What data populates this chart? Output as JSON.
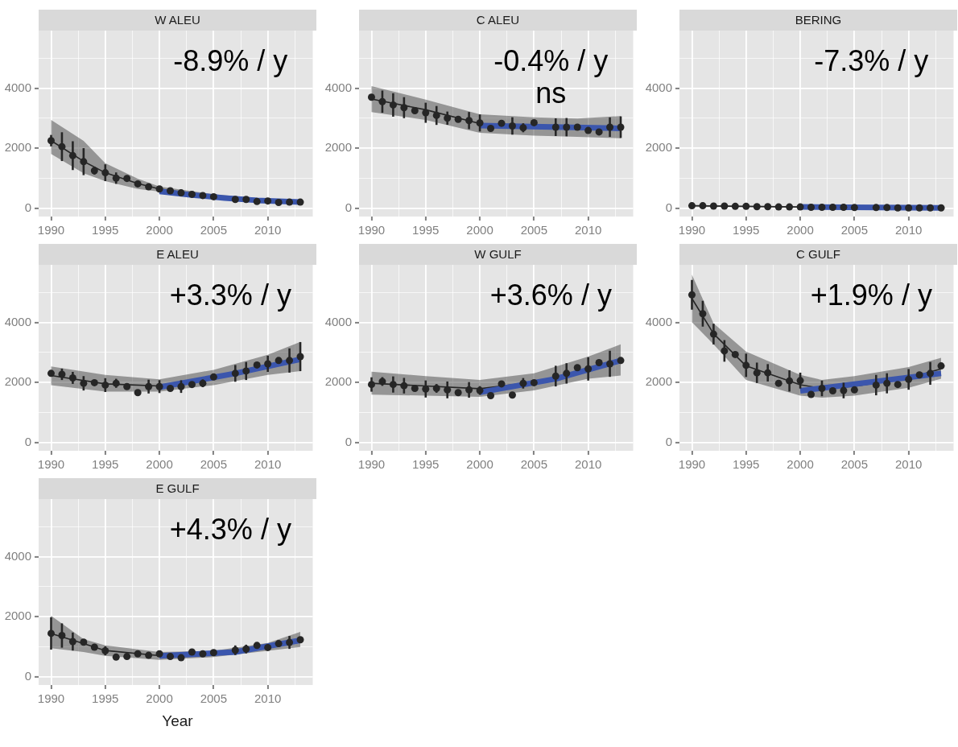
{
  "chart_data": [
    {
      "type": "line",
      "title": "W ALEU",
      "annotations": [
        "-8.9% / y"
      ],
      "xlim": [
        1988.85,
        2014.15
      ],
      "ylim": [
        -280,
        5920
      ],
      "xticks": [
        1990,
        {
          "value": 1992.5,
          "label": null
        },
        1995,
        {
          "value": 1997.5,
          "label": null
        },
        2000,
        {
          "value": 2002.5,
          "label": null
        },
        2005,
        {
          "value": 2007.5,
          "label": null
        },
        2010,
        {
          "value": 2012.5,
          "label": null
        }
      ],
      "yticks": [
        0,
        {
          "value": 1000,
          "label": null
        },
        2000,
        {
          "value": 3000,
          "label": null
        },
        4000,
        {
          "value": 5000,
          "label": null
        }
      ],
      "grid": true,
      "series": [
        {
          "type": "line",
          "color": "#262626",
          "marker": "none",
          "x": [
            1990,
            1993,
            1995,
            1998,
            2000,
            2005,
            2010,
            2013
          ],
          "values": [
            2250,
            1560,
            1180,
            820,
            640,
            380,
            240,
            190
          ],
          "lower": [
            1810,
            1160,
            900,
            640,
            550,
            300,
            170,
            130
          ],
          "upper": [
            2940,
            2240,
            1500,
            980,
            720,
            460,
            310,
            250
          ]
        },
        {
          "type": "line",
          "color": "#3b56ad",
          "marker": "none",
          "x": [
            2000,
            2003,
            2006,
            2009,
            2013
          ],
          "values": [
            560,
            440,
            340,
            260,
            200
          ]
        },
        {
          "type": "scatter",
          "color": "#262626",
          "marker": "circle",
          "x": [
            1990,
            1991,
            1992,
            1993,
            1994,
            1995,
            1996,
            1997,
            1998,
            1999,
            2000,
            2001,
            2002,
            2003,
            2004,
            2005,
            2007,
            2008,
            2009,
            2010,
            2011,
            2012,
            2013
          ],
          "values": [
            2250,
            2050,
            1750,
            1550,
            1250,
            1180,
            1000,
            990,
            810,
            710,
            640,
            580,
            510,
            460,
            420,
            380,
            290,
            290,
            220,
            240,
            190,
            200,
            200
          ],
          "errors": [
            190,
            480,
            480,
            450,
            130,
            280,
            190,
            null,
            null,
            null,
            null,
            null,
            null,
            null,
            null,
            null,
            null,
            null,
            null,
            null,
            null,
            null,
            null
          ]
        }
      ]
    },
    {
      "type": "line",
      "title": "C ALEU",
      "annotations": [
        "-0.4% / y",
        "ns"
      ],
      "xlim": [
        1988.85,
        2014.15
      ],
      "ylim": [
        -280,
        5920
      ],
      "xticks": [
        1990,
        {
          "value": 1992.5,
          "label": null
        },
        1995,
        {
          "value": 1997.5,
          "label": null
        },
        2000,
        {
          "value": 2002.5,
          "label": null
        },
        2005,
        {
          "value": 2007.5,
          "label": null
        },
        2010,
        {
          "value": 2012.5,
          "label": null
        }
      ],
      "yticks": [
        0,
        {
          "value": 1000,
          "label": null
        },
        2000,
        {
          "value": 3000,
          "label": null
        },
        4000,
        {
          "value": 5000,
          "label": null
        }
      ],
      "grid": true,
      "series": [
        {
          "type": "line",
          "color": "#262626",
          "marker": "none",
          "x": [
            1990,
            1995,
            2000,
            2005,
            2009,
            2013
          ],
          "values": [
            3640,
            3280,
            2820,
            2720,
            2680,
            2700
          ],
          "lower": [
            3200,
            2940,
            2510,
            2420,
            2380,
            2330
          ],
          "upper": [
            4070,
            3620,
            3130,
            3030,
            2990,
            3070
          ]
        },
        {
          "type": "line",
          "color": "#3b56ad",
          "marker": "none",
          "x": [
            2000,
            2013
          ],
          "values": [
            2750,
            2660
          ]
        },
        {
          "type": "scatter",
          "color": "#262626",
          "marker": "circle",
          "x": [
            1990,
            1991,
            1992,
            1993,
            1994,
            1995,
            1996,
            1997,
            1998,
            1999,
            2000,
            2001,
            2002,
            2003,
            2004,
            2005,
            2007,
            2008,
            2009,
            2010,
            2011,
            2012,
            2013
          ],
          "values": [
            3700,
            3550,
            3440,
            3350,
            3250,
            3180,
            3090,
            3000,
            2960,
            2920,
            2840,
            2660,
            2830,
            2740,
            2680,
            2850,
            2700,
            2700,
            2700,
            2590,
            2540,
            2700,
            2700
          ],
          "errors": [
            null,
            370,
            390,
            350,
            null,
            335,
            315,
            220,
            null,
            285,
            285,
            null,
            null,
            290,
            150,
            null,
            295,
            305,
            null,
            null,
            null,
            325,
            360
          ]
        }
      ]
    },
    {
      "type": "line",
      "title": "BERING",
      "annotations": [
        "-7.3% / y"
      ],
      "xlim": [
        1988.85,
        2014.15
      ],
      "ylim": [
        -280,
        5920
      ],
      "xticks": [
        1990,
        {
          "value": 1992.5,
          "label": null
        },
        1995,
        {
          "value": 1997.5,
          "label": null
        },
        2000,
        {
          "value": 2002.5,
          "label": null
        },
        2005,
        {
          "value": 2007.5,
          "label": null
        },
        2010,
        {
          "value": 2012.5,
          "label": null
        }
      ],
      "yticks": [
        0,
        {
          "value": 1000,
          "label": null
        },
        2000,
        {
          "value": 3000,
          "label": null
        },
        4000,
        {
          "value": 5000,
          "label": null
        }
      ],
      "grid": true,
      "series": [
        {
          "type": "line",
          "color": "#262626",
          "marker": "none",
          "x": [
            1990,
            1995,
            2000,
            2005,
            2013
          ],
          "values": [
            80,
            60,
            40,
            20,
            10
          ],
          "lower": [
            60,
            40,
            20,
            10,
            0
          ],
          "upper": [
            100,
            70,
            50,
            30,
            20
          ]
        },
        {
          "type": "line",
          "color": "#3b56ad",
          "marker": "none",
          "x": [
            2000,
            2013
          ],
          "values": [
            40,
            10
          ]
        },
        {
          "type": "scatter",
          "color": "#262626",
          "marker": "circle",
          "x": [
            1990,
            1991,
            1992,
            1993,
            1994,
            1995,
            1996,
            1997,
            1998,
            1999,
            2000,
            2001,
            2002,
            2003,
            2004,
            2005,
            2007,
            2008,
            2009,
            2010,
            2011,
            2012,
            2013
          ],
          "values": [
            80,
            80,
            70,
            70,
            60,
            60,
            50,
            50,
            40,
            40,
            40,
            30,
            30,
            30,
            30,
            20,
            20,
            20,
            10,
            10,
            10,
            10,
            10
          ]
        }
      ]
    },
    {
      "type": "line",
      "title": "E ALEU",
      "annotations": [
        "+3.3% / y"
      ],
      "xlim": [
        1988.85,
        2014.15
      ],
      "ylim": [
        -280,
        5920
      ],
      "xticks": [
        1990,
        {
          "value": 1992.5,
          "label": null
        },
        1995,
        {
          "value": 1997.5,
          "label": null
        },
        2000,
        {
          "value": 2002.5,
          "label": null
        },
        2005,
        {
          "value": 2007.5,
          "label": null
        },
        2010,
        {
          "value": 2012.5,
          "label": null
        }
      ],
      "yticks": [
        0,
        {
          "value": 1000,
          "label": null
        },
        2000,
        {
          "value": 3000,
          "label": null
        },
        4000,
        {
          "value": 5000,
          "label": null
        }
      ],
      "grid": true,
      "series": [
        {
          "type": "line",
          "color": "#262626",
          "marker": "none",
          "x": [
            1990,
            1995,
            2000,
            2005,
            2010,
            2013
          ],
          "values": [
            2230,
            1950,
            1880,
            2150,
            2560,
            2830
          ],
          "lower": [
            1910,
            1690,
            1690,
            1910,
            2250,
            2380
          ],
          "upper": [
            2530,
            2250,
            2100,
            2420,
            2920,
            3350
          ]
        },
        {
          "type": "line",
          "color": "#3b56ad",
          "marker": "none",
          "x": [
            2000,
            2007,
            2013
          ],
          "values": [
            1840,
            2300,
            2770
          ]
        },
        {
          "type": "scatter",
          "color": "#262626",
          "marker": "circle",
          "x": [
            1990,
            1991,
            1992,
            1993,
            1994,
            1995,
            1996,
            1997,
            1998,
            1999,
            2000,
            2001,
            2002,
            2003,
            2004,
            2005,
            2007,
            2008,
            2009,
            2010,
            2011,
            2012,
            2013
          ],
          "values": [
            2300,
            2270,
            2150,
            1970,
            1990,
            1910,
            1970,
            1860,
            1660,
            1860,
            1860,
            1800,
            1860,
            1930,
            1970,
            2180,
            2300,
            2380,
            2580,
            2620,
            2730,
            2730,
            2860
          ],
          "errors": [
            null,
            190,
            200,
            240,
            null,
            230,
            150,
            null,
            null,
            230,
            215,
            null,
            210,
            null,
            130,
            null,
            280,
            300,
            null,
            270,
            null,
            405,
            485
          ]
        }
      ]
    },
    {
      "type": "line",
      "title": "W GULF",
      "annotations": [
        "+3.6% / y"
      ],
      "xlim": [
        1988.85,
        2014.15
      ],
      "ylim": [
        -280,
        5920
      ],
      "xticks": [
        1990,
        {
          "value": 1992.5,
          "label": null
        },
        1995,
        {
          "value": 1997.5,
          "label": null
        },
        2000,
        {
          "value": 2002.5,
          "label": null
        },
        2005,
        {
          "value": 2007.5,
          "label": null
        },
        2010,
        {
          "value": 2012.5,
          "label": null
        }
      ],
      "yticks": [
        0,
        {
          "value": 1000,
          "label": null
        },
        2000,
        {
          "value": 3000,
          "label": null
        },
        4000,
        {
          "value": 5000,
          "label": null
        }
      ],
      "grid": true,
      "series": [
        {
          "type": "line",
          "color": "#262626",
          "marker": "none",
          "x": [
            1990,
            1995,
            2000,
            2005,
            2010,
            2013
          ],
          "values": [
            1970,
            1880,
            1790,
            2010,
            2460,
            2750
          ],
          "lower": [
            1590,
            1560,
            1520,
            1730,
            2120,
            2230
          ],
          "upper": [
            2360,
            2210,
            2080,
            2300,
            2860,
            3270
          ]
        },
        {
          "type": "line",
          "color": "#3b56ad",
          "marker": "none",
          "x": [
            2000,
            2007,
            2013
          ],
          "values": [
            1670,
            2120,
            2730
          ]
        },
        {
          "type": "scatter",
          "color": "#262626",
          "marker": "circle",
          "x": [
            1990,
            1991,
            1992,
            1993,
            1994,
            1995,
            1996,
            1997,
            1998,
            1999,
            2000,
            2001,
            2002,
            2003,
            2004,
            2005,
            2007,
            2008,
            2009,
            2010,
            2011,
            2012,
            2013
          ],
          "values": [
            1930,
            2030,
            1930,
            1890,
            1800,
            1780,
            1800,
            1750,
            1660,
            1750,
            1730,
            1560,
            1950,
            1580,
            1970,
            1990,
            2210,
            2300,
            2490,
            2450,
            2660,
            2620,
            2730
          ],
          "errors": [
            240,
            145,
            270,
            260,
            null,
            285,
            145,
            280,
            null,
            260,
            145,
            null,
            null,
            null,
            175,
            null,
            345,
            340,
            null,
            390,
            null,
            435,
            null
          ]
        }
      ]
    },
    {
      "type": "line",
      "title": "C GULF",
      "annotations": [
        "+1.9% / y"
      ],
      "xlim": [
        1988.85,
        2014.15
      ],
      "ylim": [
        -280,
        5920
      ],
      "xticks": [
        1990,
        {
          "value": 1992.5,
          "label": null
        },
        1995,
        {
          "value": 1997.5,
          "label": null
        },
        2000,
        {
          "value": 2002.5,
          "label": null
        },
        2005,
        {
          "value": 2007.5,
          "label": null
        },
        2010,
        {
          "value": 2012.5,
          "label": null
        }
      ],
      "yticks": [
        0,
        {
          "value": 1000,
          "label": null
        },
        2000,
        {
          "value": 3000,
          "label": null
        },
        4000,
        {
          "value": 5000,
          "label": null
        }
      ],
      "grid": true,
      "series": [
        {
          "type": "line",
          "color": "#262626",
          "marker": "none",
          "x": [
            1990,
            1992,
            1995,
            2000,
            2002,
            2005,
            2010,
            2013
          ],
          "values": [
            4800,
            3620,
            2550,
            1920,
            1800,
            1870,
            2150,
            2450
          ],
          "lower": [
            4010,
            3270,
            2080,
            1560,
            1490,
            1560,
            1820,
            2120
          ],
          "upper": [
            5590,
            3970,
            3030,
            2250,
            2080,
            2210,
            2510,
            2820
          ]
        },
        {
          "type": "line",
          "color": "#3b56ad",
          "marker": "none",
          "x": [
            2000,
            2013
          ],
          "values": [
            1720,
            2300
          ]
        },
        {
          "type": "scatter",
          "color": "#262626",
          "marker": "circle",
          "x": [
            1990,
            1991,
            1992,
            1993,
            1994,
            1995,
            1996,
            1997,
            1998,
            1999,
            2000,
            2001,
            2002,
            2003,
            2004,
            2005,
            2007,
            2008,
            2009,
            2010,
            2011,
            2012,
            2013
          ],
          "values": [
            4920,
            4290,
            3610,
            3050,
            2930,
            2570,
            2320,
            2320,
            1970,
            2050,
            2060,
            1600,
            1800,
            1720,
            1730,
            1750,
            1910,
            1970,
            1930,
            2100,
            2250,
            2300,
            2550
          ],
          "errors": [
            495,
            430,
            345,
            360,
            null,
            390,
            340,
            290,
            null,
            355,
            265,
            null,
            260,
            null,
            260,
            null,
            340,
            335,
            null,
            345,
            null,
            380,
            null
          ]
        }
      ]
    },
    {
      "type": "line",
      "title": "E GULF",
      "xlabel": "Year",
      "annotations": [
        "+4.3% / y"
      ],
      "xlim": [
        1988.85,
        2014.15
      ],
      "ylim": [
        -280,
        5920
      ],
      "xticks": [
        1990,
        {
          "value": 1992.5,
          "label": null
        },
        1995,
        {
          "value": 1997.5,
          "label": null
        },
        2000,
        {
          "value": 2002.5,
          "label": null
        },
        2005,
        {
          "value": 2007.5,
          "label": null
        },
        2010,
        {
          "value": 2012.5,
          "label": null
        }
      ],
      "yticks": [
        0,
        {
          "value": 1000,
          "label": null
        },
        2000,
        {
          "value": 3000,
          "label": null
        },
        4000,
        {
          "value": 5000,
          "label": null
        }
      ],
      "grid": true,
      "series": [
        {
          "type": "line",
          "color": "#262626",
          "marker": "none",
          "x": [
            1990,
            1993,
            1995,
            2000,
            2005,
            2010,
            2013
          ],
          "values": [
            1440,
            1100,
            870,
            700,
            760,
            990,
            1220
          ],
          "lower": [
            950,
            820,
            690,
            560,
            650,
            860,
            990
          ],
          "upper": [
            2030,
            1250,
            1040,
            820,
            860,
            1120,
            1490
          ]
        },
        {
          "type": "line",
          "color": "#3b56ad",
          "marker": "none",
          "x": [
            2000,
            2007,
            2013
          ],
          "values": [
            690,
            820,
            1210
          ]
        },
        {
          "type": "scatter",
          "color": "#262626",
          "marker": "circle",
          "x": [
            1990,
            1991,
            1992,
            1993,
            1994,
            1995,
            1996,
            1997,
            1998,
            1999,
            2000,
            2001,
            2002,
            2003,
            2004,
            2005,
            2007,
            2008,
            2009,
            2010,
            2011,
            2012,
            2013
          ],
          "values": [
            1440,
            1370,
            1170,
            1150,
            980,
            860,
            650,
            670,
            760,
            710,
            760,
            670,
            630,
            820,
            760,
            800,
            880,
            920,
            1040,
            970,
            1100,
            1140,
            1230
          ],
          "errors": [
            540,
            405,
            300,
            null,
            null,
            150,
            null,
            null,
            null,
            null,
            null,
            null,
            null,
            null,
            null,
            null,
            160,
            145,
            null,
            null,
            null,
            215,
            null
          ]
        }
      ]
    }
  ]
}
